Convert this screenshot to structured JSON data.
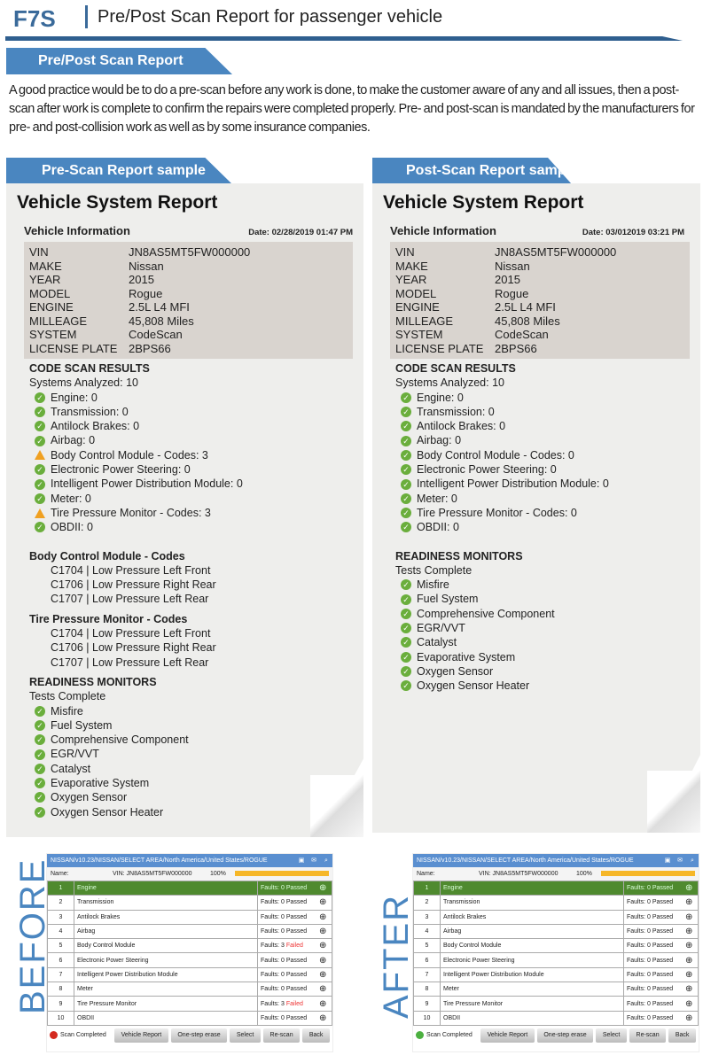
{
  "header": {
    "brand": "F7S",
    "title": "Pre/Post Scan Report for passenger vehicle"
  },
  "section_banner": "Pre/Post Scan Report",
  "intro": "A good practice would be to do a pre-scan before any work is done, to make the customer aware of any and all issues, then a post-scan after work is complete to confirm the repairs were completed properly. Pre- and post-scan is mandated by the manufacturers for pre- and post-collision work as well as by some insurance companies.",
  "reports": [
    {
      "banner": "Pre-Scan Report sample",
      "title": "Vehicle System Report",
      "vinfo_label": "Vehicle Information",
      "date": "Date: 02/28/2019 01:47 PM",
      "vehicle": [
        [
          "VIN",
          "JN8AS5MT5FW000000"
        ],
        [
          "MAKE",
          "Nissan"
        ],
        [
          "YEAR",
          "2015"
        ],
        [
          "MODEL",
          "Rogue"
        ],
        [
          "ENGINE",
          "2.5L L4 MFI"
        ],
        [
          "MILLEAGE",
          "45,808 Miles"
        ],
        [
          "SYSTEM",
          "CodeScan"
        ],
        [
          "LICENSE PLATE",
          "2BPS66"
        ]
      ],
      "scan_heading": "CODE SCAN RESULTS",
      "systems_analyzed": "Systems Analyzed: 10",
      "systems": [
        [
          "ok",
          "Engine: 0"
        ],
        [
          "ok",
          "Transmission: 0"
        ],
        [
          "ok",
          "Antilock Brakes: 0"
        ],
        [
          "ok",
          "Airbag: 0"
        ],
        [
          "warn",
          "Body Control Module - Codes: 3"
        ],
        [
          "ok",
          "Electronic Power Steering: 0"
        ],
        [
          "ok",
          "Intelligent Power Distribution Module: 0"
        ],
        [
          "ok",
          "Meter: 0"
        ],
        [
          "warn",
          "Tire Pressure Monitor - Codes: 3"
        ],
        [
          "ok",
          "OBDII: 0"
        ]
      ],
      "code_groups": [
        {
          "title": "Body Control Module - Codes",
          "codes": [
            "C1704 | Low Pressure Left Front",
            "C1706 | Low Pressure Right Rear",
            "C1707 | Low Pressure Left Rear"
          ]
        },
        {
          "title": "Tire Pressure Monitor - Codes",
          "codes": [
            "C1704 | Low Pressure Left Front",
            "C1706 | Low Pressure Right Rear",
            "C1707 | Low Pressure Left Rear"
          ]
        }
      ],
      "readiness_heading": "READINESS MONITORS",
      "tests_complete": "Tests Complete",
      "monitors": [
        "Misfire",
        "Fuel System",
        "Comprehensive Component",
        "EGR/VVT",
        "Catalyst",
        "Evaporative System",
        "Oxygen Sensor",
        "Oxygen Sensor Heater"
      ]
    },
    {
      "banner": "Post-Scan Report sample",
      "title": "Vehicle System Report",
      "vinfo_label": "Vehicle Information",
      "date": "Date: 03/012019 03:21 PM",
      "vehicle": [
        [
          "VIN",
          "JN8AS5MT5FW000000"
        ],
        [
          "MAKE",
          "Nissan"
        ],
        [
          "YEAR",
          "2015"
        ],
        [
          "MODEL",
          "Rogue"
        ],
        [
          "ENGINE",
          "2.5L L4 MFI"
        ],
        [
          "MILLEAGE",
          "45,808 Miles"
        ],
        [
          "SYSTEM",
          "CodeScan"
        ],
        [
          "LICENSE PLATE",
          "2BPS66"
        ]
      ],
      "scan_heading": "CODE SCAN RESULTS",
      "systems_analyzed": "Systems Analyzed: 10",
      "systems": [
        [
          "ok",
          "Engine: 0"
        ],
        [
          "ok",
          "Transmission: 0"
        ],
        [
          "ok",
          "Antilock Brakes: 0"
        ],
        [
          "ok",
          "Airbag: 0"
        ],
        [
          "ok",
          "Body Control Module - Codes: 0"
        ],
        [
          "ok",
          "Electronic Power Steering: 0"
        ],
        [
          "ok",
          "Intelligent Power Distribution Module: 0"
        ],
        [
          "ok",
          "Meter: 0"
        ],
        [
          "ok",
          "Tire Pressure Monitor - Codes: 0"
        ],
        [
          "ok",
          "OBDII: 0"
        ]
      ],
      "code_groups": [],
      "readiness_heading": "READINESS MONITORS",
      "tests_complete": "Tests Complete",
      "monitors": [
        "Misfire",
        "Fuel System",
        "Comprehensive Component",
        "EGR/VVT",
        "Catalyst",
        "Evaporative System",
        "Oxygen Sensor",
        "Oxygen Sensor Heater"
      ]
    }
  ],
  "screens": [
    {
      "side_label": "BEFORE",
      "path": "NISSAN/v10.23/NISSAN/SELECT AREA/North America/United States/ROGUE",
      "name_label": "Name:",
      "vin": "VIN: JN8AS5MT5FW000000",
      "progress_text": "100%",
      "progress": 1.0,
      "status": "Scan Completed",
      "status_color": "#d42a20",
      "rows": [
        [
          "1",
          "Engine",
          "Faults: 0",
          "Passed"
        ],
        [
          "2",
          "Transmission",
          "Faults: 0",
          "Passed"
        ],
        [
          "3",
          "Antilock Brakes",
          "Faults: 0",
          "Passed"
        ],
        [
          "4",
          "Airbag",
          "Faults: 0",
          "Passed"
        ],
        [
          "5",
          "Body Control Module",
          "Faults: 3",
          "Failed"
        ],
        [
          "6",
          "Electronic Power Steering",
          "Faults: 0",
          "Passed"
        ],
        [
          "7",
          "Intelligent Power Distribution Module",
          "Faults: 0",
          "Passed"
        ],
        [
          "8",
          "Meter",
          "Faults: 0",
          "Passed"
        ],
        [
          "9",
          "Tire Pressure Monitor",
          "Faults: 3",
          "Failed"
        ],
        [
          "10",
          "OBDII",
          "Faults: 0",
          "Passed"
        ]
      ],
      "buttons": [
        "Vehicle Report",
        "One-step erase",
        "Select",
        "Re-scan",
        "Back"
      ]
    },
    {
      "side_label": "AFTER",
      "path": "NISSAN/v10.23/NISSAN/SELECT AREA/North America/United States/ROGUE",
      "name_label": "Name:",
      "vin": "VIN: JN8AS5MT5FW000000",
      "progress_text": "100%",
      "progress": 1.0,
      "status": "Scan Completed",
      "status_color": "#4cb040",
      "rows": [
        [
          "1",
          "Engine",
          "Faults: 0",
          "Passed"
        ],
        [
          "2",
          "Transmission",
          "Faults: 0",
          "Passed"
        ],
        [
          "3",
          "Antilock Brakes",
          "Faults: 0",
          "Passed"
        ],
        [
          "4",
          "Airbag",
          "Faults: 0",
          "Passed"
        ],
        [
          "5",
          "Body Control Module",
          "Faults: 0",
          "Passed"
        ],
        [
          "6",
          "Electronic Power Steering",
          "Faults: 0",
          "Passed"
        ],
        [
          "7",
          "Intelligent Power Distribution Module",
          "Faults: 0",
          "Passed"
        ],
        [
          "8",
          "Meter",
          "Faults: 0",
          "Passed"
        ],
        [
          "9",
          "Tire Pressure Monitor",
          "Faults: 0",
          "Passed"
        ],
        [
          "10",
          "OBDII",
          "Faults: 0",
          "Passed"
        ]
      ],
      "buttons": [
        "Vehicle Report",
        "One-step erase",
        "Select",
        "Re-scan",
        "Back"
      ]
    }
  ]
}
